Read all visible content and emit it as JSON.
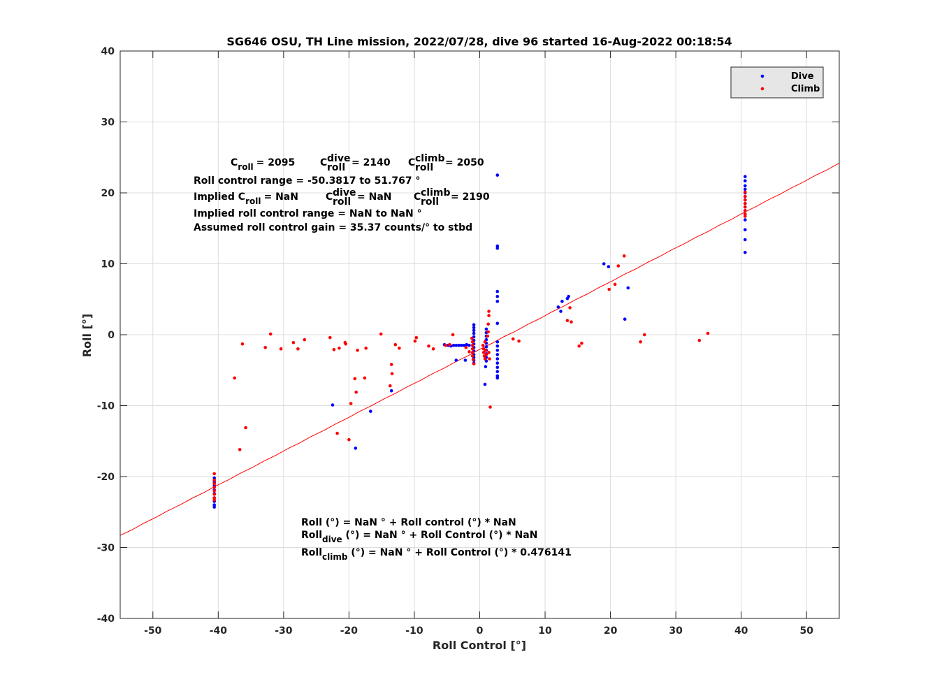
{
  "chart_data": {
    "type": "scatter",
    "title": "SG646 OSU, TH Line mission, 2022/07/28, dive 96 started 16-Aug-2022 00:18:54",
    "xlabel": "Roll Control [°]",
    "ylabel": "Roll [°]",
    "xlim": [
      -55,
      55
    ],
    "ylim": [
      -40,
      40
    ],
    "xticks": [
      -50,
      -40,
      -30,
      -20,
      -10,
      0,
      10,
      20,
      30,
      40,
      50
    ],
    "yticks": [
      -40,
      -30,
      -20,
      -10,
      0,
      10,
      20,
      30,
      40
    ],
    "xtick_labels": [
      "-50",
      "-40",
      "-30",
      "-20",
      "-10",
      "0",
      "10",
      "20",
      "30",
      "40",
      "50"
    ],
    "ytick_labels": [
      "-40",
      "-30",
      "-20",
      "-10",
      "0",
      "10",
      "20",
      "30",
      "40"
    ],
    "grid": true,
    "legend_position": "top-right",
    "colors": {
      "dive": "#0000ff",
      "climb": "#ff0000",
      "fit": "#ff0000",
      "legend_bg": "#e6e6e6"
    },
    "series": [
      {
        "name": "Dive",
        "marker": "dot",
        "points": [
          [
            -40.6,
            -20.2
          ],
          [
            -40.6,
            -20.8
          ],
          [
            -40.6,
            -21.3
          ],
          [
            -40.6,
            -21.9
          ],
          [
            -40.6,
            -22.4
          ],
          [
            -40.6,
            -23.0
          ],
          [
            -40.6,
            -23.5
          ],
          [
            -40.6,
            -24.0
          ],
          [
            -40.6,
            -24.3
          ],
          [
            -22.5,
            -9.9
          ],
          [
            -19.0,
            -16.0
          ],
          [
            -16.7,
            -10.8
          ],
          [
            -13.5,
            -7.9
          ],
          [
            -5.4,
            -1.4
          ],
          [
            -4.8,
            -1.5
          ],
          [
            -4.4,
            -1.6
          ],
          [
            -4.0,
            -1.5
          ],
          [
            -3.6,
            -1.5
          ],
          [
            -3.2,
            -1.5
          ],
          [
            -2.8,
            -1.5
          ],
          [
            -2.4,
            -1.5
          ],
          [
            -2.0,
            -1.4
          ],
          [
            -1.6,
            -1.5
          ],
          [
            -3.6,
            -3.6
          ],
          [
            -2.2,
            -3.6
          ],
          [
            -0.9,
            1.4
          ],
          [
            -0.9,
            1.0
          ],
          [
            -0.9,
            0.6
          ],
          [
            -0.9,
            0.2
          ],
          [
            -0.9,
            -0.3
          ],
          [
            -0.9,
            -0.8
          ],
          [
            -0.9,
            -1.3
          ],
          [
            -0.9,
            -1.8
          ],
          [
            -0.9,
            -2.3
          ],
          [
            -0.9,
            -2.8
          ],
          [
            -0.9,
            -3.2
          ],
          [
            -0.9,
            -3.6
          ],
          [
            -0.9,
            -4.0
          ],
          [
            1.0,
            0.8
          ],
          [
            1.0,
            0.3
          ],
          [
            1.0,
            -0.2
          ],
          [
            1.0,
            -0.7
          ],
          [
            1.0,
            -1.2
          ],
          [
            1.0,
            -1.7
          ],
          [
            1.0,
            -2.2
          ],
          [
            1.0,
            -2.7
          ],
          [
            1.0,
            -3.2
          ],
          [
            1.0,
            -3.7
          ],
          [
            0.9,
            -4.5
          ],
          [
            0.8,
            -7.0
          ],
          [
            2.7,
            22.5
          ],
          [
            2.7,
            12.5
          ],
          [
            2.7,
            12.2
          ],
          [
            2.7,
            6.1
          ],
          [
            2.7,
            5.4
          ],
          [
            2.7,
            4.7
          ],
          [
            2.7,
            1.6
          ],
          [
            2.7,
            -1.0
          ],
          [
            2.7,
            -1.6
          ],
          [
            2.7,
            -2.2
          ],
          [
            2.7,
            -2.8
          ],
          [
            2.7,
            -3.4
          ],
          [
            2.7,
            -4.0
          ],
          [
            2.7,
            -4.6
          ],
          [
            2.7,
            -5.2
          ],
          [
            2.7,
            -5.8
          ],
          [
            2.7,
            -6.1
          ],
          [
            12.0,
            3.9
          ],
          [
            12.4,
            3.3
          ],
          [
            12.6,
            4.7
          ],
          [
            13.4,
            5.1
          ],
          [
            13.6,
            5.4
          ],
          [
            19.0,
            10.0
          ],
          [
            19.7,
            9.6
          ],
          [
            22.2,
            2.2
          ],
          [
            22.7,
            6.6
          ],
          [
            40.6,
            22.3
          ],
          [
            40.6,
            21.7
          ],
          [
            40.6,
            21.0
          ],
          [
            40.6,
            20.5
          ],
          [
            40.6,
            20.0
          ],
          [
            40.6,
            19.5
          ],
          [
            40.6,
            19.0
          ],
          [
            40.6,
            18.5
          ],
          [
            40.6,
            18.0
          ],
          [
            40.6,
            17.5
          ],
          [
            40.6,
            17.0
          ],
          [
            40.6,
            16.2
          ],
          [
            40.6,
            14.8
          ],
          [
            40.6,
            13.4
          ],
          [
            40.6,
            11.6
          ]
        ]
      },
      {
        "name": "Climb",
        "marker": "dot",
        "points": [
          [
            -40.6,
            -19.6
          ],
          [
            -40.6,
            -20.5
          ],
          [
            -40.6,
            -21.0
          ],
          [
            -40.6,
            -21.5
          ],
          [
            -40.6,
            -22.0
          ],
          [
            -40.6,
            -22.5
          ],
          [
            -40.6,
            -23.0
          ],
          [
            -40.6,
            -23.3
          ],
          [
            -37.5,
            -6.1
          ],
          [
            -36.7,
            -16.2
          ],
          [
            -36.3,
            -1.3
          ],
          [
            -35.8,
            -13.1
          ],
          [
            -32.8,
            -1.8
          ],
          [
            -32.0,
            0.1
          ],
          [
            -30.4,
            -2.0
          ],
          [
            -28.5,
            -1.1
          ],
          [
            -27.8,
            -2.0
          ],
          [
            -26.8,
            -0.7
          ],
          [
            -22.9,
            -0.4
          ],
          [
            -22.3,
            -2.1
          ],
          [
            -21.8,
            -13.9
          ],
          [
            -21.5,
            -1.9
          ],
          [
            -20.6,
            -1.1
          ],
          [
            -20.5,
            -1.3
          ],
          [
            -20.0,
            -14.8
          ],
          [
            -19.7,
            -9.7
          ],
          [
            -19.1,
            -6.2
          ],
          [
            -18.9,
            -8.1
          ],
          [
            -18.7,
            -2.2
          ],
          [
            -17.6,
            -6.1
          ],
          [
            -17.4,
            -1.9
          ],
          [
            -15.1,
            0.1
          ],
          [
            -13.7,
            -7.2
          ],
          [
            -13.5,
            -4.2
          ],
          [
            -13.4,
            -5.5
          ],
          [
            -12.9,
            -1.4
          ],
          [
            -12.3,
            -1.9
          ],
          [
            -9.9,
            -0.9
          ],
          [
            -9.7,
            -0.4
          ],
          [
            -7.8,
            -1.6
          ],
          [
            -7.1,
            -2.0
          ],
          [
            -5.2,
            -1.5
          ],
          [
            -4.6,
            -1.4
          ],
          [
            -4.1,
            0.0
          ],
          [
            -2.1,
            -1.8
          ],
          [
            -1.6,
            -2.4
          ],
          [
            -1.2,
            -0.5
          ],
          [
            -1.1,
            -1.0
          ],
          [
            -1.1,
            -1.5
          ],
          [
            -1.1,
            -2.0
          ],
          [
            -1.1,
            -2.5
          ],
          [
            -1.1,
            -3.0
          ],
          [
            -1.0,
            -3.5
          ],
          [
            -0.9,
            -4.1
          ],
          [
            0.5,
            -1.5
          ],
          [
            0.6,
            -2.0
          ],
          [
            0.6,
            -2.5
          ],
          [
            0.7,
            -3.0
          ],
          [
            0.8,
            -3.4
          ],
          [
            0.8,
            -1.0
          ],
          [
            0.9,
            -2.2
          ],
          [
            1.0,
            -2.8
          ],
          [
            1.2,
            -0.2
          ],
          [
            1.3,
            0.4
          ],
          [
            1.3,
            1.5
          ],
          [
            1.4,
            2.7
          ],
          [
            1.4,
            3.3
          ],
          [
            1.4,
            -2.5
          ],
          [
            1.5,
            -3.4
          ],
          [
            1.6,
            -10.2
          ],
          [
            5.1,
            -0.6
          ],
          [
            6.0,
            -0.9
          ],
          [
            13.4,
            2.0
          ],
          [
            13.8,
            3.8
          ],
          [
            14.0,
            1.8
          ],
          [
            15.2,
            -1.6
          ],
          [
            15.6,
            -1.2
          ],
          [
            19.8,
            6.4
          ],
          [
            20.7,
            7.1
          ],
          [
            21.2,
            9.7
          ],
          [
            22.1,
            11.1
          ],
          [
            24.6,
            -1.0
          ],
          [
            25.2,
            0.0
          ],
          [
            33.6,
            -0.8
          ],
          [
            34.9,
            0.2
          ],
          [
            40.6,
            20.1
          ],
          [
            40.6,
            19.5
          ],
          [
            40.6,
            19.0
          ],
          [
            40.6,
            18.5
          ],
          [
            40.6,
            18.0
          ],
          [
            40.6,
            17.5
          ],
          [
            40.6,
            17.0
          ],
          [
            40.6,
            16.7
          ]
        ]
      },
      {
        "name": "",
        "type": "line",
        "x": [
          -55,
          55
        ],
        "y": [
          -28.3,
          24.2
        ]
      }
    ],
    "legend": [
      {
        "label": "Dive",
        "color": "#0000ff"
      },
      {
        "label": "Climb",
        "color": "#ff0000"
      }
    ]
  },
  "annotations_top": {
    "c_roll_base": "C",
    "c_roll_sub": "roll",
    "c_roll_value": "= 2095",
    "c_dive_base": "C",
    "c_dive_sup": "dive",
    "c_dive_sub": "roll",
    "c_dive_value": "= 2140",
    "c_climb_base": "C",
    "c_climb_sup": "climb",
    "c_climb_sub": "roll",
    "c_climb_value": "= 2050",
    "range_line": "Roll control range = -50.3817 to 51.767 °",
    "implied_prefix": "Implied C",
    "implied_sub": "roll",
    "implied_value": "=  NaN",
    "implied_dive_base": "C",
    "implied_dive_sup": "dive",
    "implied_dive_sub": "roll",
    "implied_dive_value": "=  NaN",
    "implied_climb_base": "C",
    "implied_climb_sup": "climb",
    "implied_climb_sub": "roll",
    "implied_climb_value": "= 2190",
    "implied_range_line": "Implied roll control range = NaN to NaN °",
    "gain_line": "Assumed roll control gain = 35.37 counts/° to stbd"
  },
  "annotations_bottom": {
    "fit_line": "Roll (°) = NaN ° + Roll control (°) * NaN",
    "fit_dive_base": "Roll",
    "fit_dive_sub": "dive",
    "fit_dive_rest": " (°) = NaN ° + Roll Control (°) * NaN",
    "fit_climb_base": "Roll",
    "fit_climb_sub": "climb",
    "fit_climb_rest": " (°) = NaN ° + Roll Control (°) * 0.476141"
  }
}
